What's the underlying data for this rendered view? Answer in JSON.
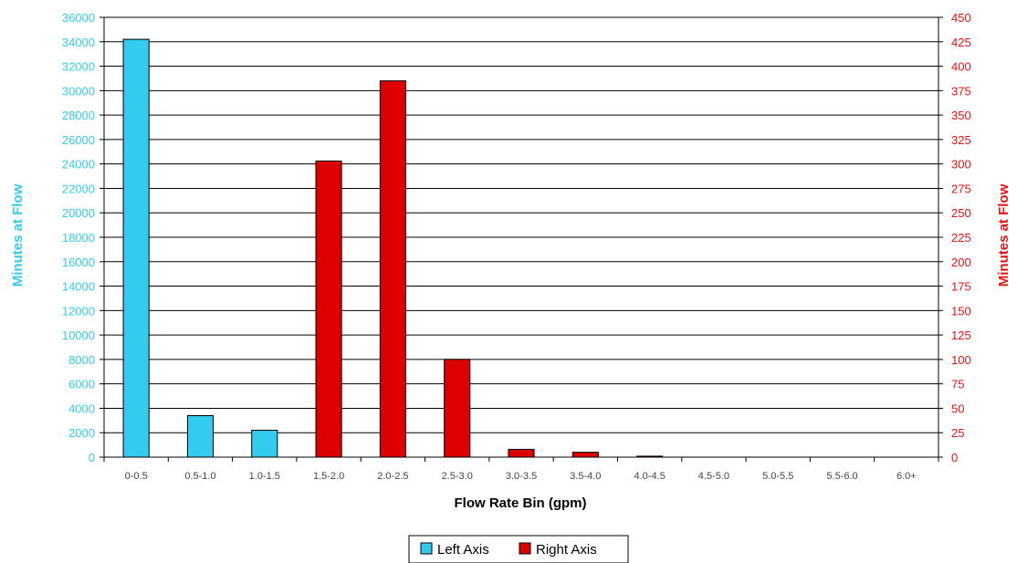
{
  "chart_data": {
    "type": "bar",
    "xlabel": "Flow Rate Bin (gpm)",
    "categories": [
      "0-0.5",
      "0.5-1.0",
      "1.0-1.5",
      "1.5-2.0",
      "2.0-2.5",
      "2.5-3.0",
      "3.0-3.5",
      "3.5-4.0",
      "4.0-4.5",
      "4.5-5.0",
      "5.0-5.5",
      "5.5-6.0",
      "6.0+"
    ],
    "left_axis": {
      "label": "Minutes at Flow",
      "ylim": [
        0,
        36000
      ],
      "ticks": [
        "0",
        "2000",
        "4000",
        "6000",
        "8000",
        "10000",
        "12000",
        "14000",
        "16000",
        "18000",
        "20000",
        "22000",
        "24000",
        "26000",
        "28000",
        "30000",
        "32000",
        "34000",
        "36000"
      ],
      "color": "#33ccee"
    },
    "right_axis": {
      "label": "Minutes at Flow",
      "ylim": [
        0,
        450
      ],
      "ticks": [
        "0",
        "25",
        "50",
        "75",
        "100",
        "125",
        "150",
        "175",
        "200",
        "225",
        "250",
        "275",
        "300",
        "325",
        "350",
        "375",
        "400",
        "425",
        "450"
      ],
      "color": "#ee1111"
    },
    "series": [
      {
        "name": "Left Axis",
        "axis": "left",
        "color": "#33ccee",
        "values": [
          34200,
          3400,
          2200,
          null,
          null,
          null,
          null,
          null,
          null,
          null,
          null,
          null,
          null
        ]
      },
      {
        "name": "Right Axis",
        "axis": "right",
        "color": "#dd0000",
        "values": [
          null,
          null,
          null,
          303,
          385,
          100,
          8,
          5,
          1,
          0,
          0,
          0,
          0
        ]
      }
    ],
    "grid": true,
    "legend_position": "bottom-center"
  }
}
